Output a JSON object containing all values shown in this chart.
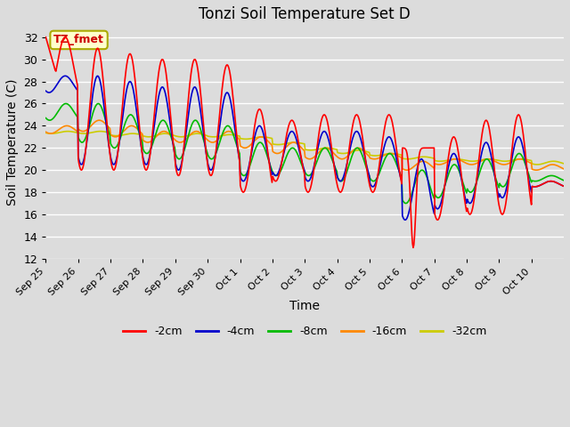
{
  "title": "Tonzi Soil Temperature Set D",
  "xlabel": "Time",
  "ylabel": "Soil Temperature (C)",
  "ylim": [
    12,
    33
  ],
  "yticks": [
    12,
    14,
    16,
    18,
    20,
    22,
    24,
    26,
    28,
    30,
    32
  ],
  "bg_color": "#dcdcdc",
  "series_colors": [
    "#ff0000",
    "#0000cc",
    "#00bb00",
    "#ff8800",
    "#cccc00"
  ],
  "series_labels": [
    "-2cm",
    "-4cm",
    "-8cm",
    "-16cm",
    "-32cm"
  ],
  "legend_label": "TZ_fmet",
  "x_labels": [
    "Sep 25",
    "Sep 26",
    "Sep 27",
    "Sep 28",
    "Sep 29",
    "Sep 30",
    "Oct 1",
    "Oct 2",
    "Oct 3",
    "Oct 4",
    "Oct 5",
    "Oct 6",
    "Oct 7",
    "Oct 8",
    "Oct 9",
    "Oct 10"
  ],
  "n_days": 16,
  "ppd": 48
}
